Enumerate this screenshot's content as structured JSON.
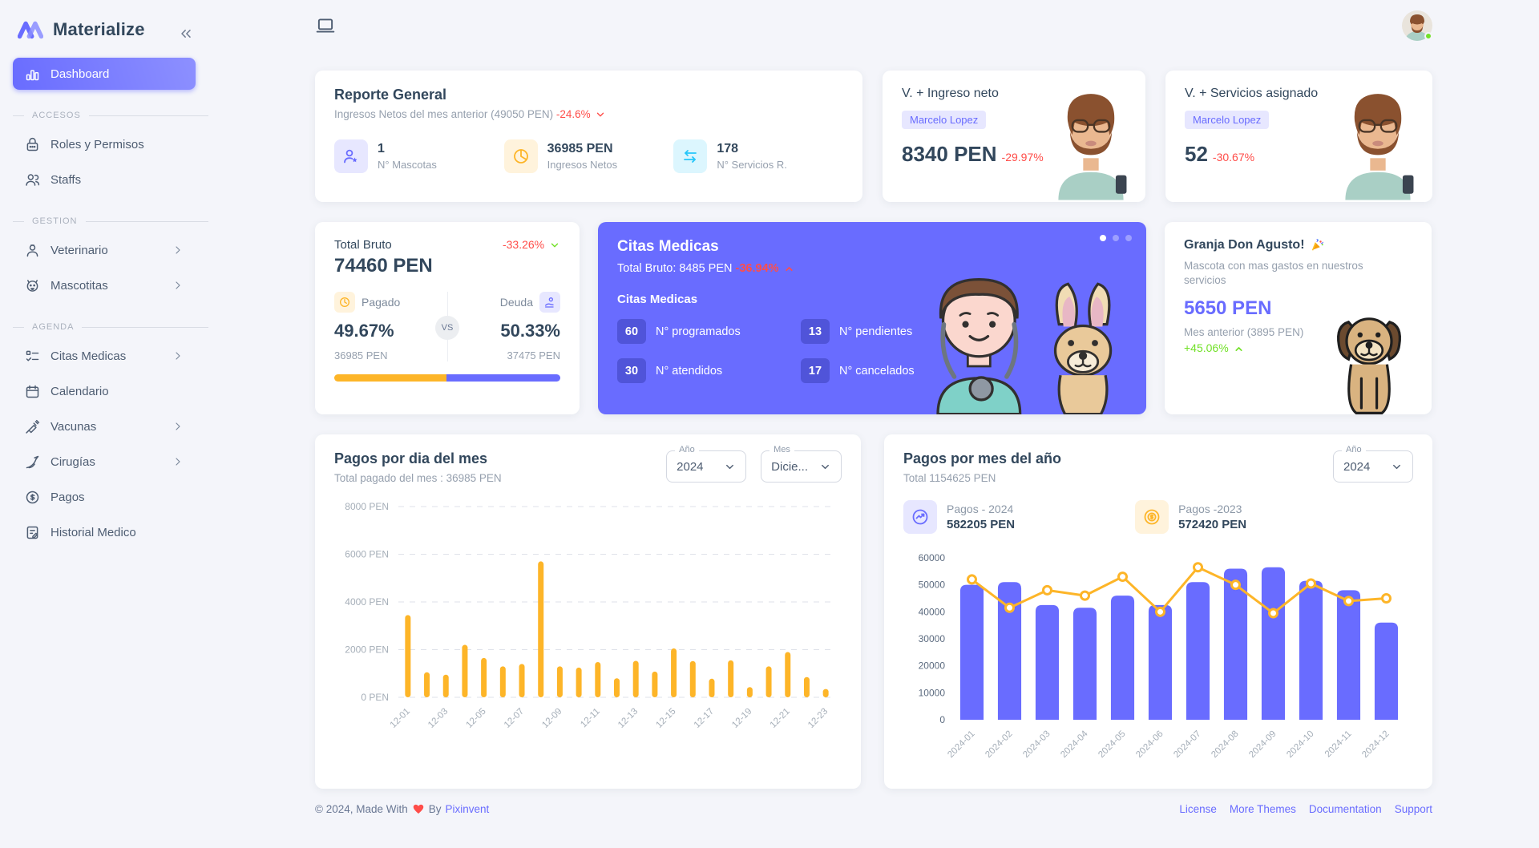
{
  "brand": {
    "name": "Materialize"
  },
  "sidebar": {
    "sections": [
      {
        "title": "",
        "items": [
          {
            "label": "Dashboard"
          }
        ]
      },
      {
        "title": "ACCESOS",
        "items": [
          {
            "label": "Roles y Permisos"
          },
          {
            "label": "Staffs"
          }
        ]
      },
      {
        "title": "GESTION",
        "items": [
          {
            "label": "Veterinario"
          },
          {
            "label": "Mascotitas"
          }
        ]
      },
      {
        "title": "AGENDA",
        "items": [
          {
            "label": "Citas Medicas"
          },
          {
            "label": "Calendario"
          },
          {
            "label": "Vacunas"
          },
          {
            "label": "Cirugías"
          },
          {
            "label": "Pagos"
          },
          {
            "label": "Historial Medico"
          }
        ]
      }
    ]
  },
  "cards": {
    "reporte": {
      "title": "Reporte General",
      "subtitle": "Ingresos Netos del mes anterior (49050 PEN)",
      "delta": "-24.6%",
      "stats": [
        {
          "value": "1",
          "label": "N° Mascotas"
        },
        {
          "value": "36985 PEN",
          "label": "Ingresos Netos"
        },
        {
          "value": "178",
          "label": "N° Servicios R."
        }
      ]
    },
    "ingreso": {
      "title": "V. + Ingreso neto",
      "badge": "Marcelo Lopez",
      "value": "8340 PEN",
      "delta": "-29.97%"
    },
    "servicios": {
      "title": "V. + Servicios asignado",
      "badge": "Marcelo Lopez",
      "value": "52",
      "delta": "-30.67%"
    },
    "total_bruto": {
      "title": "Total Bruto",
      "delta": "-33.26%",
      "value": "74460 PEN",
      "pagado_label": "Pagado",
      "pagado_pct": "49.67%",
      "pagado_amount": "36985 PEN",
      "vs": "VS",
      "deuda_label": "Deuda",
      "deuda_pct": "50.33%",
      "deuda_amount": "37475 PEN",
      "pagado_ratio": 49.67
    },
    "citas": {
      "title": "Citas Medicas",
      "subtitle": "Total Bruto: 8485 PEN",
      "delta": "-36.94%",
      "section_title": "Citas Medicas",
      "stats": [
        {
          "value": "60",
          "label": "N° programados"
        },
        {
          "value": "13",
          "label": "N° pendientes"
        },
        {
          "value": "30",
          "label": "N° atendidos"
        },
        {
          "value": "17",
          "label": "N° cancelados"
        }
      ]
    },
    "granja": {
      "title": "Granja Don Agusto!",
      "subtitle": "Mascota con mas gastos en nuestros servicios",
      "value": "5650 PEN",
      "prev": "Mes anterior (3895 PEN)",
      "delta": "+45.06%"
    }
  },
  "daily_card": {
    "title": "Pagos por dia del mes",
    "subtitle": "Total pagado del mes : 36985 PEN",
    "year_label": "Año",
    "year_value": "2024",
    "month_label": "Mes",
    "month_value": "Dicie..."
  },
  "monthly_card": {
    "title": "Pagos por mes del año",
    "subtitle": "Total 1154625 PEN",
    "year_label": "Año",
    "year_value": "2024",
    "legend": [
      {
        "label": "Pagos - 2024",
        "value": "582205 PEN"
      },
      {
        "label": "Pagos -2023",
        "value": "572420 PEN"
      }
    ]
  },
  "chart_data": [
    {
      "type": "bar",
      "title": "Pagos por dia del mes",
      "categories": [
        "12-01",
        "12-02",
        "12-03",
        "12-04",
        "12-05",
        "12-06",
        "12-07",
        "12-08",
        "12-09",
        "12-10",
        "12-11",
        "12-12",
        "12-13",
        "12-14",
        "12-15",
        "12-16",
        "12-17",
        "12-18",
        "12-19",
        "12-20",
        "12-21",
        "12-22",
        "12-23"
      ],
      "values": [
        3450,
        1050,
        950,
        2200,
        1650,
        1300,
        1400,
        5700,
        1300,
        1250,
        1480,
        800,
        1530,
        1080,
        2050,
        1520,
        780,
        1550,
        430,
        1300,
        1900,
        850,
        350
      ],
      "ylabel_suffix": " PEN",
      "ylim": [
        0,
        8000
      ],
      "ytick": 2000,
      "bar_color": "#fdb528",
      "grid": "dashed",
      "label_every": 2
    },
    {
      "type": "bar+line",
      "title": "Pagos por mes del año",
      "categories": [
        "2024-01",
        "2024-02",
        "2024-03",
        "2024-04",
        "2024-05",
        "2024-06",
        "2024-07",
        "2024-08",
        "2024-09",
        "2024-10",
        "2024-11",
        "2024-12"
      ],
      "series": [
        {
          "name": "Pagos - 2024",
          "type": "bar",
          "color": "#696cff",
          "values": [
            50000,
            51000,
            42500,
            41500,
            46000,
            42500,
            51000,
            56000,
            56500,
            51500,
            48000,
            36000
          ]
        },
        {
          "name": "Pagos -2023",
          "type": "line",
          "color": "#fdb528",
          "values": [
            52000,
            41500,
            48000,
            46000,
            53000,
            40000,
            56500,
            50000,
            39500,
            50500,
            44000,
            45000
          ]
        }
      ],
      "ylim": [
        0,
        60000
      ],
      "ytick": 10000,
      "grid": "none",
      "label_every": 1
    }
  ],
  "footer": {
    "copyright": "© 2024, Made With",
    "by": "By",
    "brand": "Pixinvent",
    "links": [
      "License",
      "More Themes",
      "Documentation",
      "Support"
    ]
  },
  "colors": {
    "primary": "#696cff",
    "warning": "#fdb528",
    "info": "#26c6f9",
    "error": "#ff4d49",
    "success": "#72e128",
    "background": "#f4f5fa"
  }
}
